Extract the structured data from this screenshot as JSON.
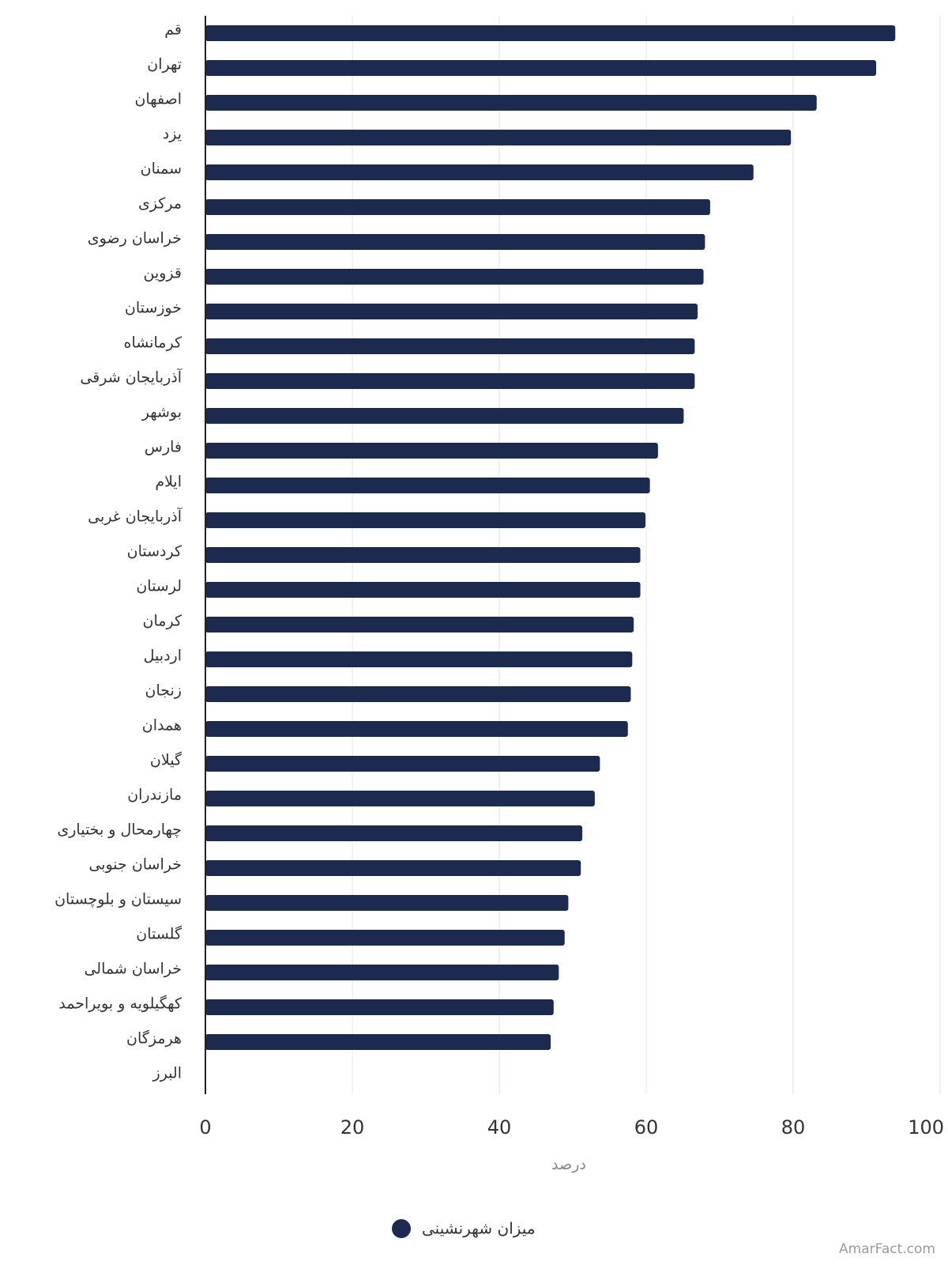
{
  "chart_data": {
    "type": "bar",
    "orientation": "horizontal",
    "categories": [
      "قم",
      "تهران",
      "اصفهان",
      "یزد",
      "سمنان",
      "مرکزی",
      "خراسان رضوی",
      "قزوین",
      "خوزستان",
      "کرمانشاه",
      "آذربایجان شرقی",
      "بوشهر",
      "فارس",
      "ایلام",
      "آذربایجان غربی",
      "کردستان",
      "لرستان",
      "کرمان",
      "اردبیل",
      "زنجان",
      "همدان",
      "گیلان",
      "مازندران",
      "چهارمحال و بختیاری",
      "خراسان جنوبی",
      "سیستان و بلوچستان",
      "گلستان",
      "خراسان شمالی",
      "کهگیلویه و بویراحمد",
      "هرمزگان",
      "البرز"
    ],
    "series": [
      {
        "name": "میزان شهرنشینی",
        "color": "#1b2a4e",
        "values": [
          93.9,
          91.3,
          83.2,
          79.7,
          74.6,
          68.7,
          68.0,
          67.8,
          67.0,
          66.6,
          66.6,
          65.1,
          61.6,
          60.5,
          59.9,
          59.2,
          59.2,
          58.3,
          58.1,
          57.9,
          57.5,
          53.7,
          53.0,
          51.3,
          51.1,
          49.4,
          48.9,
          48.1,
          47.4,
          47.0,
          0
        ]
      }
    ],
    "xlabel": "درصد",
    "ylabel": "",
    "xlim": [
      0,
      100
    ],
    "xticks": [
      0,
      20,
      40,
      60,
      80,
      100
    ],
    "grid": true,
    "legend_position": "bottom-center"
  },
  "watermark": "AmarFact.com"
}
